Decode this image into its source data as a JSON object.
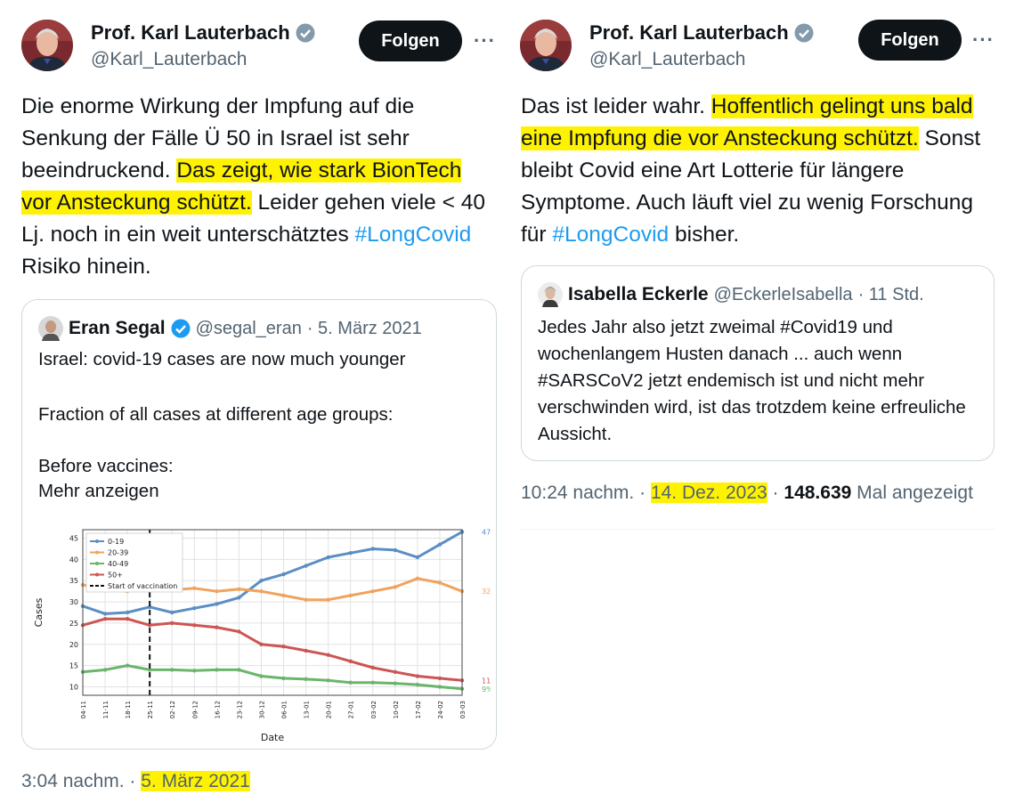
{
  "left": {
    "author": {
      "name": "Prof. Karl Lauterbach",
      "handle": "@Karl_Lauterbach"
    },
    "follow_label": "Folgen",
    "more_label": "···",
    "text": {
      "part1": "Die enorme Wirkung der Impfung auf die Senkung der Fälle Ü 50 in Israel ist sehr beeindruckend. ",
      "highlight": "Das zeigt, wie stark BionTech vor Ansteckung schützt.",
      "part2": " Leider gehen viele < 40 Lj. noch in ein weit unterschätztes ",
      "hashtag": "#LongCovid",
      "part3": " Risiko hinein."
    },
    "quote": {
      "name": "Eran Segal",
      "handle": "@segal_eran",
      "date": "· 5. März 2021",
      "line1": "Israel: covid-19 cases are now much younger",
      "line2": "Fraction of all cases at different age groups:",
      "line3": "Before vaccines:",
      "show_more": "Mehr anzeigen"
    },
    "footer": {
      "time": "3:04 nachm. ·",
      "date": "5. März 2021"
    }
  },
  "right": {
    "author": {
      "name": "Prof. Karl Lauterbach",
      "handle": "@Karl_Lauterbach"
    },
    "follow_label": "Folgen",
    "more_label": "···",
    "text": {
      "part1": "Das ist leider wahr. ",
      "highlight": "Hoffentlich gelingt uns bald eine Impfung die vor Ansteckung schützt.",
      "part2": " Sonst bleibt Covid eine Art Lotterie für längere Symptome. Auch läuft viel zu wenig Forschung für ",
      "hashtag": "#LongCovid",
      "part3": " bisher."
    },
    "quote": {
      "name": "Isabella Eckerle",
      "handle": "@EckerleIsabella",
      "date": "· 11 Std.",
      "text": "Jedes Jahr also jetzt zweimal #Covid19 und wochenlangem Husten danach ... auch wenn #SARSCoV2 jetzt endemisch ist und nicht mehr verschwinden wird, ist das trotzdem keine erfreuliche Aussicht."
    },
    "footer": {
      "time": "10:24 nachm. ·",
      "date": "14. Dez. 2023",
      "sep": "·",
      "views": "148.639",
      "views_label": "Mal angezeigt"
    }
  },
  "chart_data": {
    "type": "line",
    "title": "",
    "xlabel": "Date",
    "ylabel": "Cases",
    "ylim": [
      8,
      47
    ],
    "yticks": [
      10,
      15,
      20,
      25,
      30,
      35,
      40,
      45
    ],
    "grid": true,
    "legend_position": "top-left",
    "vline_label": "Start of vaccination",
    "vline_x": 21,
    "x_tick_labels": [
      "04-11",
      "11-11",
      "18-11",
      "25-11",
      "02-12",
      "09-12",
      "16-12",
      "23-12",
      "30-12",
      "06-01",
      "13-01",
      "20-01",
      "27-01",
      "03-02",
      "10-02",
      "17-02",
      "24-02",
      "03-03"
    ],
    "x_tick_pos": [
      0,
      7,
      14,
      21,
      28,
      35,
      42,
      49,
      56,
      63,
      70,
      77,
      84,
      91,
      98,
      105,
      112,
      119
    ],
    "x": [
      0,
      7,
      14,
      21,
      28,
      35,
      42,
      49,
      56,
      63,
      70,
      77,
      84,
      91,
      98,
      105,
      112,
      119
    ],
    "series": [
      {
        "name": "0-19",
        "color": "#5b8ec4",
        "end_label": "47%",
        "values": [
          29,
          27.2,
          27.5,
          28.8,
          27.5,
          28.5,
          29.5,
          31,
          35,
          36.5,
          38.5,
          40.5,
          41.5,
          42.5,
          42.2,
          40.5,
          43.5,
          46.5
        ]
      },
      {
        "name": "20-39",
        "color": "#f0a35e",
        "end_label": "32%",
        "values": [
          34,
          33,
          32.5,
          33.5,
          32.8,
          33.2,
          32.5,
          33,
          32.5,
          31.5,
          30.5,
          30.5,
          31.5,
          32.5,
          33.5,
          35.5,
          34.5,
          32.5
        ]
      },
      {
        "name": "40-49",
        "color": "#6bb56b",
        "end_label": "9%",
        "values": [
          13.5,
          14,
          15,
          14,
          14,
          13.8,
          14,
          14,
          12.5,
          12,
          11.8,
          11.5,
          11,
          11,
          10.8,
          10.5,
          10,
          9.5
        ]
      },
      {
        "name": "50+",
        "color": "#cc5555",
        "end_label": "11%",
        "values": [
          24.5,
          26,
          26,
          24.5,
          25,
          24.5,
          24,
          23,
          20,
          19.5,
          18.5,
          17.5,
          16,
          14.5,
          13.5,
          12.5,
          12,
          11.5
        ]
      }
    ]
  }
}
